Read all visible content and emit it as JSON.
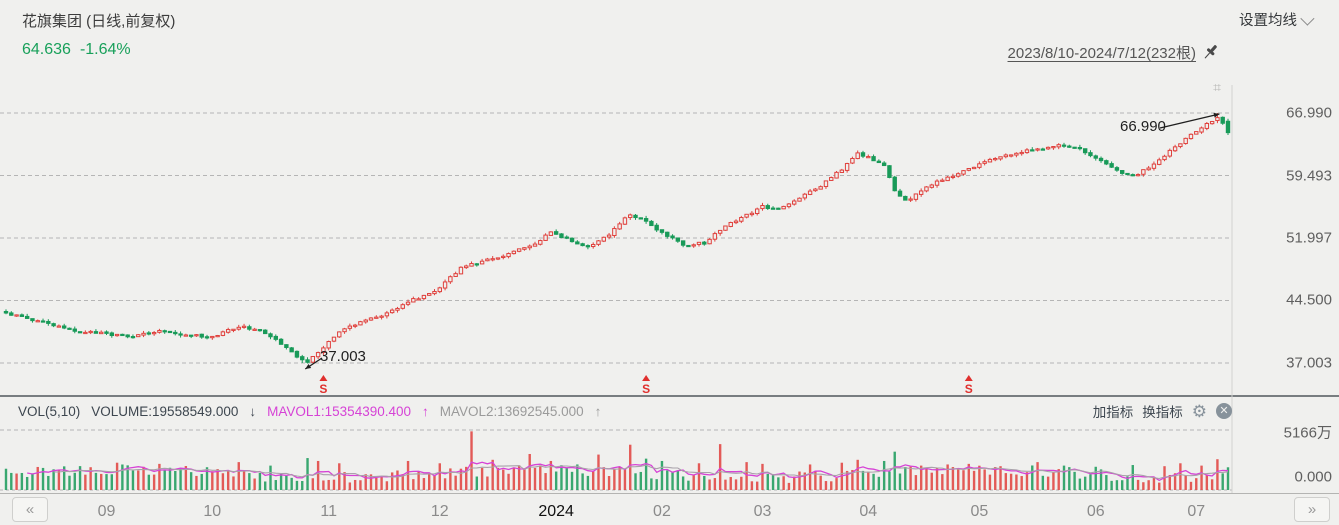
{
  "header": {
    "title": "花旗集团 (日线,前复权)",
    "price": "64.636",
    "change": "-1.64%",
    "ma_settings_label": "设置均线",
    "date_range": "2023/8/10-2024/7/12(232根)"
  },
  "price_axis": {
    "labels": [
      "66.990",
      "59.493",
      "51.997",
      "44.500",
      "37.003"
    ]
  },
  "volume_axis": {
    "max_label": "5166万",
    "min_label": "0.000"
  },
  "vol_header": {
    "indicator": "VOL(5,10)",
    "volume_label": "VOLUME:19558549.000",
    "volume_arrow": "↓",
    "mavol1_label": "MAVOL1:15354390.400",
    "mavol1_arrow": "↑",
    "mavol2_label": "MAVOL2:13692545.000",
    "mavol2_arrow": "↑",
    "add_indicator": "加指标",
    "switch_indicator": "换指标"
  },
  "annotations": {
    "high": "66.990",
    "low": "37.003"
  },
  "nav": {
    "prev": "«",
    "next": "»"
  },
  "colors": {
    "up": "#e0403c",
    "down": "#189a58",
    "mavol1": "#d643d6",
    "mavol2": "#a9a2aa",
    "price_text": "#18a05a",
    "event": "#e0302e",
    "grid": "#b5b5b5",
    "annotation": "#1f1f1f"
  },
  "chart_data": {
    "type": "candlestick+volume",
    "title": "花旗集团(日线,前复权)",
    "bars_count": 232,
    "date_start": "2023/8/10",
    "date_end": "2024/7/12",
    "y_axis_ticks": [
      66.99,
      59.493,
      51.997,
      44.5,
      37.003
    ],
    "price_range": [
      37.003,
      66.99
    ],
    "last_close": 64.636,
    "last_change_pct": -1.64,
    "x_axis": {
      "labels": [
        "09",
        "10",
        "11",
        "12",
        "2024",
        "02",
        "03",
        "04",
        "05",
        "06",
        "07"
      ],
      "label_bar_indices": [
        19,
        39,
        61,
        82,
        104,
        124,
        143,
        163,
        184,
        206,
        225
      ],
      "current_label": "2024"
    },
    "price_close_anchors": [
      [
        0,
        42.9
      ],
      [
        4,
        42.4
      ],
      [
        9,
        41.5
      ],
      [
        14,
        40.8
      ],
      [
        19,
        40.5
      ],
      [
        24,
        40.1
      ],
      [
        29,
        40.9
      ],
      [
        34,
        40.4
      ],
      [
        39,
        40.1
      ],
      [
        44,
        41.4
      ],
      [
        48,
        40.9
      ],
      [
        52,
        39.3
      ],
      [
        55,
        37.8
      ],
      [
        57,
        37.1
      ],
      [
        59,
        38.2
      ],
      [
        61,
        39.6
      ],
      [
        64,
        41.1
      ],
      [
        68,
        42.1
      ],
      [
        72,
        42.9
      ],
      [
        76,
        44.4
      ],
      [
        80,
        45.3
      ],
      [
        82,
        46.1
      ],
      [
        86,
        48.4
      ],
      [
        90,
        49.2
      ],
      [
        95,
        50.1
      ],
      [
        100,
        51.3
      ],
      [
        103,
        52.7
      ],
      [
        107,
        51.6
      ],
      [
        110,
        51.0
      ],
      [
        114,
        52.4
      ],
      [
        118,
        54.9
      ],
      [
        121,
        53.9
      ],
      [
        124,
        52.6
      ],
      [
        128,
        51.2
      ],
      [
        132,
        51.4
      ],
      [
        136,
        53.4
      ],
      [
        140,
        54.7
      ],
      [
        143,
        55.8
      ],
      [
        146,
        55.4
      ],
      [
        150,
        56.9
      ],
      [
        154,
        58.3
      ],
      [
        158,
        60.2
      ],
      [
        161,
        62.1
      ],
      [
        163,
        61.7
      ],
      [
        166,
        60.8
      ],
      [
        168,
        57.8
      ],
      [
        170,
        56.4
      ],
      [
        173,
        57.6
      ],
      [
        176,
        58.8
      ],
      [
        180,
        59.7
      ],
      [
        184,
        60.9
      ],
      [
        188,
        61.7
      ],
      [
        192,
        62.4
      ],
      [
        196,
        62.8
      ],
      [
        200,
        63.2
      ],
      [
        203,
        62.8
      ],
      [
        206,
        61.5
      ],
      [
        210,
        60.1
      ],
      [
        213,
        59.4
      ],
      [
        216,
        60.4
      ],
      [
        219,
        61.9
      ],
      [
        222,
        63.4
      ],
      [
        225,
        64.9
      ],
      [
        227,
        65.7
      ],
      [
        229,
        66.4
      ],
      [
        230,
        65.8
      ],
      [
        231,
        64.636
      ]
    ],
    "high_annotation": {
      "bar_index": 229,
      "price": 66.99
    },
    "low_annotation": {
      "bar_index": 56,
      "price": 37.003
    },
    "event_markers": {
      "label": "S",
      "bar_indices": [
        60,
        121,
        182
      ]
    },
    "volume": {
      "axis_max_wan": 5166,
      "axis_min": 0,
      "last_volume": 19558549.0,
      "mavol1": 15354390.4,
      "mavol2": 13692545.0,
      "spikes_wan": {
        "21": 2350,
        "29": 2250,
        "44": 2400,
        "50": 2100,
        "57": 2750,
        "59": 2500,
        "63": 2300,
        "76": 2500,
        "82": 2300,
        "88": 5050,
        "92": 2600,
        "99": 3100,
        "103": 2500,
        "108": 2200,
        "112": 3050,
        "118": 3900,
        "121": 2700,
        "124": 2500,
        "131": 2300,
        "135": 3950,
        "140": 2400,
        "143": 2250,
        "152": 2200,
        "158": 2350,
        "161": 2600,
        "166": 2500,
        "168": 3300,
        "173": 2100,
        "178": 2200,
        "182": 2250,
        "188": 2050,
        "195": 2400,
        "200": 2100,
        "206": 2000,
        "213": 2150,
        "219": 2050,
        "222": 2300,
        "226": 2100,
        "229": 2650,
        "231": 1956
      }
    }
  }
}
